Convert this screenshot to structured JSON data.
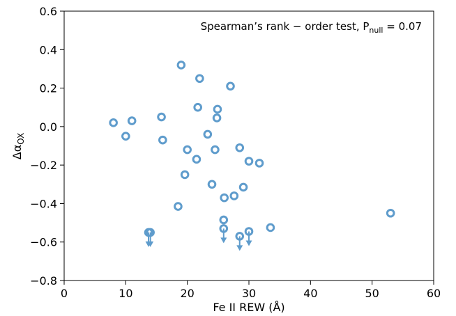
{
  "chart_data": {
    "type": "scatter",
    "annotation": [
      "Spearman’s rank − order test, P",
      "null",
      " = 0.07"
    ],
    "xlabel": "Fe II REW (Å)",
    "ylabel": [
      "Δα",
      "OX"
    ],
    "color": "#5f9ccc",
    "x": [
      8.0,
      11.0,
      10.0,
      15.8,
      16.0,
      19.0,
      22.0,
      27.0,
      21.7,
      24.9,
      24.8,
      23.3,
      20.0,
      24.5,
      28.5,
      21.5,
      30.0,
      31.7,
      19.6,
      24.0,
      29.1,
      26.0,
      27.6,
      18.5,
      53.0,
      33.5,
      25.9,
      25.9,
      13.7,
      14.0,
      30.0,
      28.5
    ],
    "values": [
      0.02,
      0.03,
      -0.05,
      0.05,
      -0.07,
      0.32,
      0.25,
      0.21,
      0.1,
      0.09,
      0.045,
      -0.04,
      -0.12,
      -0.12,
      -0.11,
      -0.17,
      -0.18,
      -0.19,
      -0.25,
      -0.3,
      -0.315,
      -0.37,
      -0.36,
      -0.415,
      -0.45,
      -0.525,
      -0.485,
      -0.53,
      -0.55,
      -0.55,
      -0.545,
      -0.57
    ],
    "upper_limits": [
      false,
      false,
      false,
      false,
      false,
      false,
      false,
      false,
      false,
      false,
      false,
      false,
      false,
      false,
      false,
      false,
      false,
      false,
      false,
      false,
      false,
      false,
      false,
      false,
      false,
      false,
      false,
      true,
      true,
      true,
      true,
      true
    ],
    "xlim": [
      0,
      60
    ],
    "xticks": [
      0,
      10,
      20,
      30,
      40,
      50,
      60
    ],
    "ylim": [
      -0.8,
      0.6
    ],
    "yticks": [
      {
        "value": -0.8,
        "label": "−0.8"
      },
      {
        "value": -0.6,
        "label": "−0.6"
      },
      {
        "value": -0.4,
        "label": "−0.4"
      },
      {
        "value": -0.2,
        "label": "−0.2"
      },
      {
        "value": 0.0,
        "label": "0.0"
      },
      0.2,
      0.4,
      0.6
    ],
    "grid": false
  }
}
